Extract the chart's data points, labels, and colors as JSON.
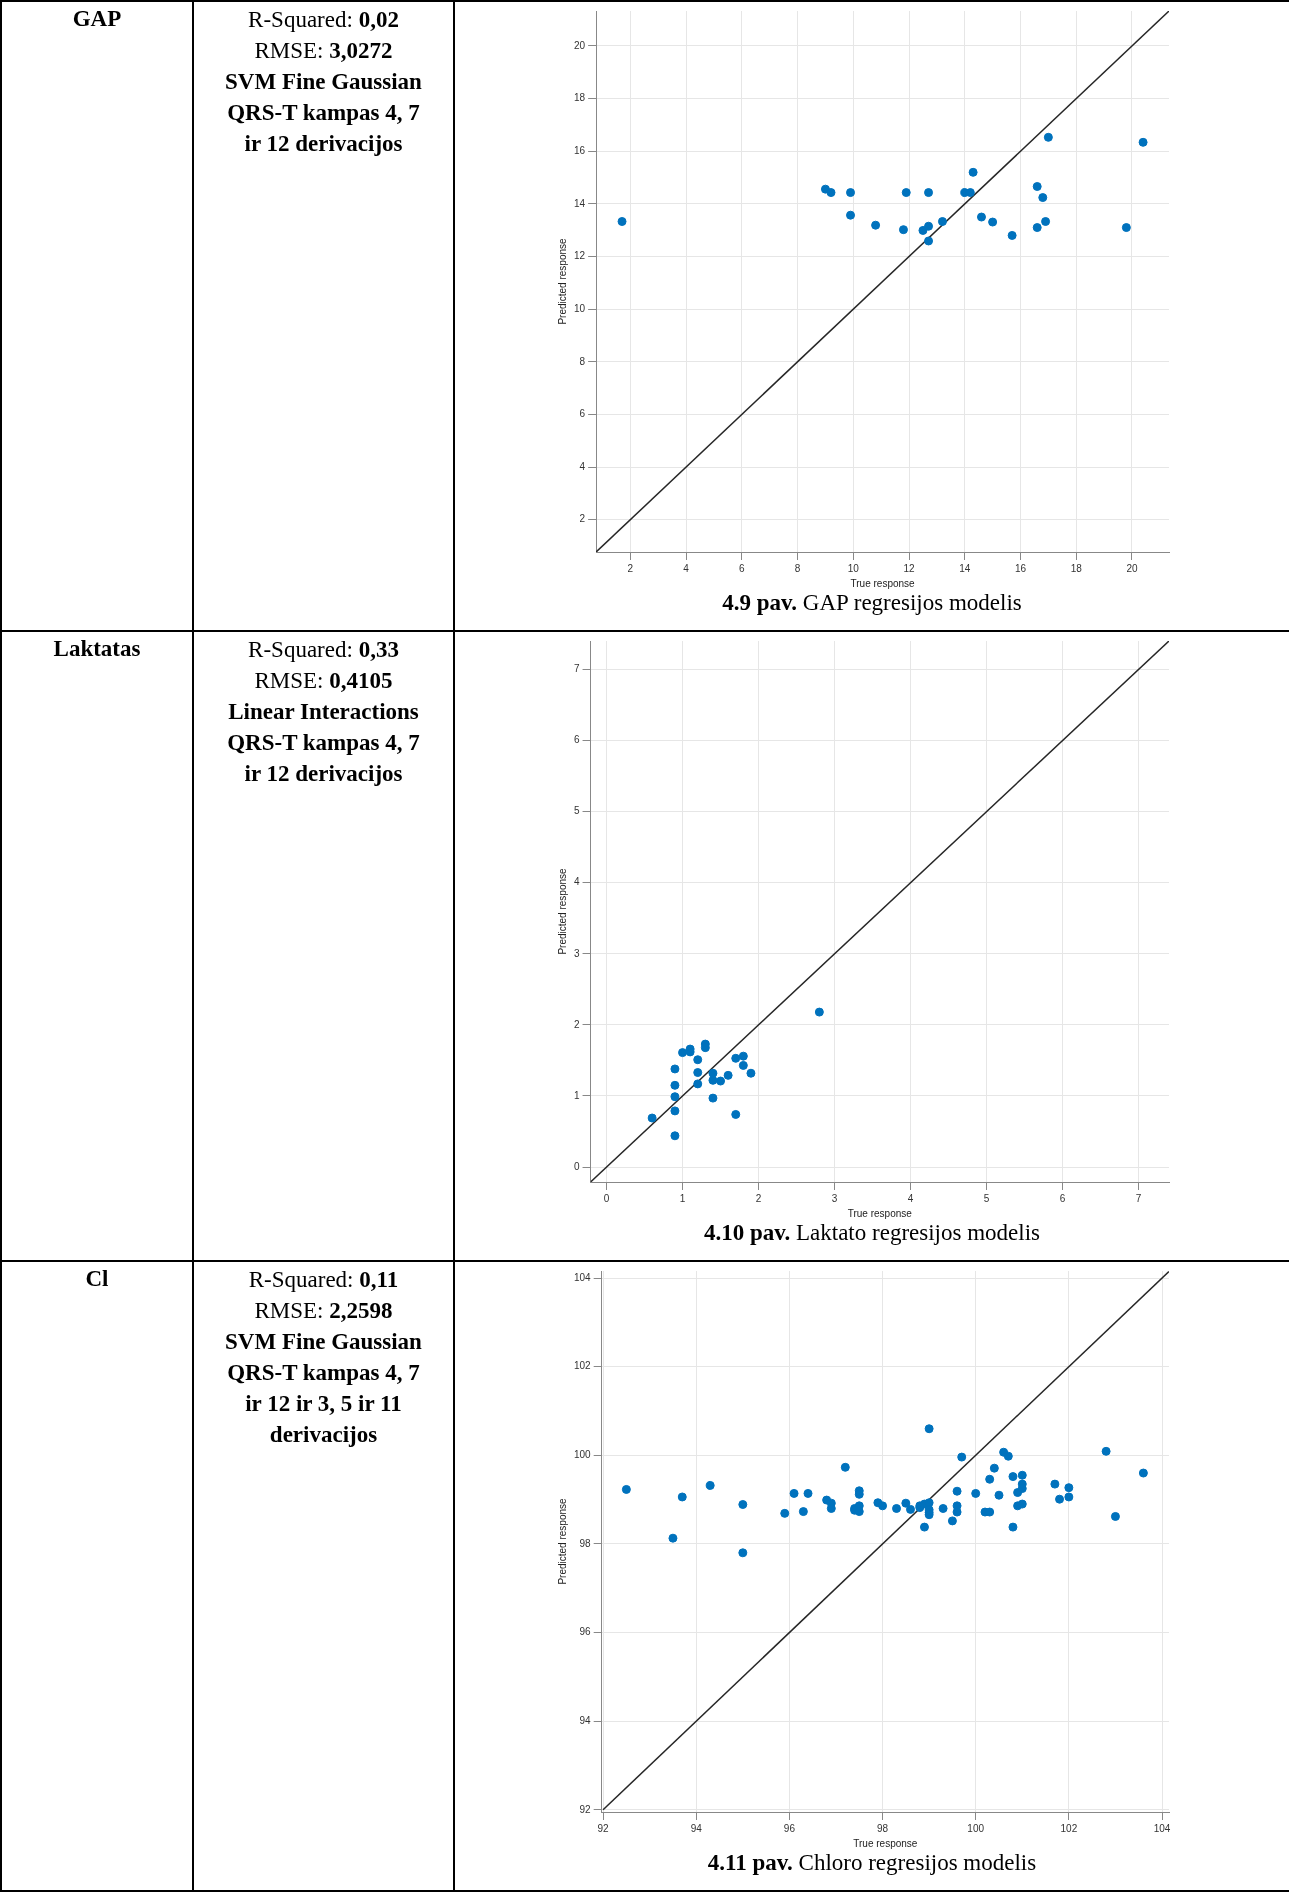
{
  "chart_data": [
    {
      "type": "other",
      "title": "GAP",
      "annotations": [
        "R-Squared: 0,02",
        "RMSE: 3,0272",
        "SVM Fine Gaussian",
        "QRS-T kampas 4, 7",
        "ir 12 derivacijos"
      ]
    },
    {
      "type": "scatter",
      "xlabel": "True response",
      "ylabel": "Predicted response",
      "xlim": [
        0.77,
        21.33
      ],
      "ylim": [
        0.77,
        21.33
      ],
      "xticks": [
        2,
        4,
        6,
        8,
        10,
        12,
        14,
        16,
        18,
        20
      ],
      "yticks": [
        2,
        4,
        6,
        8,
        10,
        12,
        14,
        16,
        18,
        20
      ],
      "grid": true,
      "annotations": [
        "4.9 pav. GAP regresijos modelis"
      ],
      "series": [
        {
          "color": "#0072bd",
          "marker": "circle",
          "x": [
            1.7,
            9.0,
            9.2,
            9.9,
            9.9,
            10.8,
            11.8,
            11.9,
            12.5,
            12.7,
            12.7,
            12.7,
            13.2,
            14.0,
            14.2,
            14.3,
            14.6,
            15.0,
            15.7,
            16.6,
            16.6,
            16.8,
            16.9,
            17.0,
            19.8,
            20.4
          ],
          "values": [
            13.33,
            14.56,
            14.43,
            14.43,
            13.57,
            13.19,
            13.02,
            14.43,
            12.99,
            14.43,
            13.15,
            12.59,
            13.33,
            14.43,
            14.43,
            15.2,
            13.5,
            13.31,
            12.8,
            14.66,
            13.1,
            14.24,
            13.33,
            16.53,
            13.1,
            16.34
          ]
        },
        {
          "type": "line",
          "color": "#262626",
          "marker": "none",
          "x": [
            0.77,
            21.33
          ],
          "values": [
            0.77,
            21.33
          ]
        }
      ]
    },
    {
      "type": "other",
      "title": "Laktatas",
      "annotations": [
        "R-Squared: 0,33",
        "RMSE: 0,4105",
        "Linear Interactions",
        "QRS-T kampas 4, 7",
        "ir 12 derivacijos"
      ]
    },
    {
      "type": "scatter",
      "xlabel": "True response",
      "ylabel": "Predicted response",
      "xlim": [
        -0.21,
        7.4
      ],
      "ylim": [
        -0.21,
        7.4
      ],
      "xticks": [
        0,
        1,
        2,
        3,
        4,
        5,
        6,
        7
      ],
      "yticks": [
        0,
        1,
        2,
        3,
        4,
        5,
        6,
        7
      ],
      "grid": true,
      "annotations": [
        "4.10 pav. Laktato regresijos modelis"
      ],
      "series": [
        {
          "color": "#0072bd",
          "marker": "circle",
          "x": [
            0.6,
            0.9,
            0.9,
            0.9,
            0.9,
            0.9,
            1.0,
            1.1,
            1.1,
            1.2,
            1.2,
            1.2,
            1.3,
            1.3,
            1.4,
            1.4,
            1.4,
            1.5,
            1.6,
            1.7,
            1.7,
            1.8,
            1.8,
            1.9,
            2.8
          ],
          "values": [
            0.69,
            0.44,
            0.79,
            0.99,
            1.15,
            1.38,
            1.61,
            1.66,
            1.62,
            1.51,
            1.33,
            1.17,
            1.73,
            1.68,
            1.32,
            1.22,
            0.97,
            1.21,
            1.29,
            1.53,
            0.74,
            1.56,
            1.43,
            1.32,
            2.18
          ]
        },
        {
          "type": "line",
          "color": "#262626",
          "marker": "none",
          "x": [
            -0.21,
            7.4
          ],
          "values": [
            -0.21,
            7.4
          ]
        }
      ]
    },
    {
      "type": "other",
      "title": "Cl",
      "annotations": [
        "R-Squared: 0,11",
        "RMSE: 2,2598",
        "SVM Fine Gaussian",
        "QRS-T kampas 4, 7",
        "ir 12 ir 3, 5 ir 11",
        "derivacijos"
      ]
    },
    {
      "type": "scatter",
      "xlabel": "True response",
      "ylabel": "Predicted response",
      "xlim": [
        91.97,
        104.15
      ],
      "ylim": [
        91.95,
        104.16
      ],
      "xticks": [
        92,
        94,
        96,
        98,
        100,
        102,
        104
      ],
      "yticks": [
        92,
        94,
        96,
        98,
        100,
        102,
        104
      ],
      "grid": true,
      "annotations": [
        "4.11 pav. Chloro regresijos modelis"
      ],
      "series": [
        {
          "color": "#0072bd",
          "marker": "circle",
          "x": [
            92.5,
            93.5,
            93.7,
            94.3,
            95.0,
            95.0,
            95.9,
            96.1,
            96.3,
            96.4,
            96.8,
            96.9,
            96.9,
            97.2,
            97.4,
            97.4,
            97.5,
            97.5,
            97.5,
            97.5,
            97.9,
            98.0,
            98.3,
            98.5,
            98.6,
            98.8,
            98.8,
            98.9,
            98.9,
            99.0,
            99.0,
            99.0,
            99.0,
            99.0,
            99.3,
            99.5,
            99.6,
            99.6,
            99.6,
            99.7,
            100.0,
            100.2,
            100.3,
            100.3,
            100.4,
            100.5,
            100.6,
            100.7,
            100.8,
            100.8,
            100.9,
            100.9,
            101.0,
            101.0,
            101.0,
            101.0,
            101.7,
            101.8,
            102.0,
            102.0,
            102.8,
            103.0,
            103.6
          ],
          "values": [
            99.23,
            98.13,
            99.06,
            99.32,
            98.89,
            97.8,
            98.69,
            99.14,
            98.73,
            99.14,
            98.99,
            98.92,
            98.8,
            99.73,
            98.8,
            98.76,
            99.2,
            99.12,
            98.86,
            98.73,
            98.93,
            98.86,
            98.8,
            98.92,
            98.78,
            98.86,
            98.82,
            98.9,
            98.38,
            98.93,
            100.6,
            98.77,
            98.71,
            98.66,
            98.8,
            98.52,
            99.19,
            98.86,
            98.72,
            99.96,
            99.14,
            98.72,
            98.72,
            99.46,
            99.71,
            99.1,
            100.07,
            99.98,
            99.52,
            98.38,
            99.16,
            98.86,
            99.55,
            99.35,
            99.25,
            98.9,
            99.35,
            99.01,
            99.27,
            99.06,
            100.09,
            98.62,
            99.6
          ]
        },
        {
          "type": "line",
          "color": "#262626",
          "marker": "none",
          "x": [
            92,
            104.15
          ],
          "values": [
            92,
            104.15
          ]
        }
      ]
    }
  ]
}
